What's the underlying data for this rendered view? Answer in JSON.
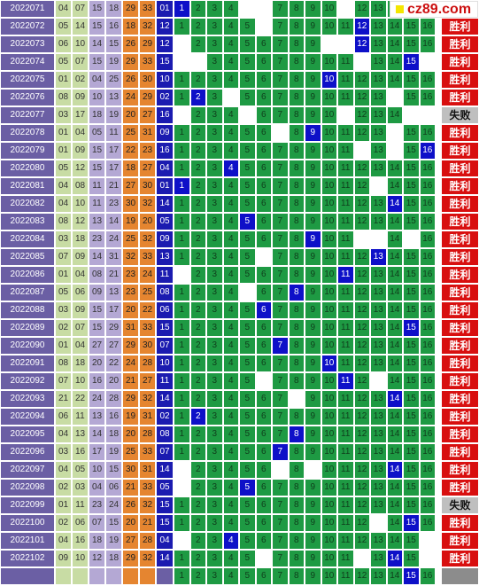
{
  "logo_text": "cz89.com",
  "win_label": "胜利",
  "lose_label": "失败",
  "rows": [
    {
      "period": "2022071",
      "nums": [
        "04",
        "07",
        "15",
        "18",
        "29",
        "33",
        "01"
      ],
      "hit": 1,
      "holes": [
        5,
        6,
        11
      ],
      "result": "胜利"
    },
    {
      "period": "2022072",
      "nums": [
        "05",
        "14",
        "15",
        "16",
        "18",
        "32",
        "12"
      ],
      "hit": 12,
      "holes": [
        6
      ],
      "result": "胜利"
    },
    {
      "period": "2022073",
      "nums": [
        "06",
        "10",
        "14",
        "15",
        "26",
        "29",
        "12"
      ],
      "hit": 12,
      "holes": [
        1,
        10,
        11
      ],
      "result": "胜利"
    },
    {
      "period": "2022074",
      "nums": [
        "05",
        "07",
        "15",
        "19",
        "29",
        "33",
        "15"
      ],
      "hit": 15,
      "holes": [
        1,
        2,
        12,
        16
      ],
      "result": "胜利"
    },
    {
      "period": "2022075",
      "nums": [
        "01",
        "02",
        "04",
        "25",
        "26",
        "30",
        "10"
      ],
      "hit": 10,
      "holes": [],
      "result": "胜利"
    },
    {
      "period": "2022076",
      "nums": [
        "08",
        "09",
        "10",
        "13",
        "24",
        "29",
        "02"
      ],
      "hit": 2,
      "holes": [
        4,
        14
      ],
      "result": "胜利"
    },
    {
      "period": "2022077",
      "nums": [
        "03",
        "17",
        "18",
        "19",
        "20",
        "27",
        "16"
      ],
      "hit": null,
      "holes": [
        1,
        5,
        11,
        15,
        16
      ],
      "result": "失败"
    },
    {
      "period": "2022078",
      "nums": [
        "01",
        "04",
        "05",
        "11",
        "25",
        "31",
        "09"
      ],
      "hit": 9,
      "holes": [
        7,
        14
      ],
      "result": "胜利"
    },
    {
      "period": "2022079",
      "nums": [
        "01",
        "09",
        "15",
        "17",
        "22",
        "23",
        "16"
      ],
      "hit": 16,
      "holes": [
        12,
        14
      ],
      "result": "胜利"
    },
    {
      "period": "2022080",
      "nums": [
        "05",
        "12",
        "15",
        "17",
        "18",
        "27",
        "04"
      ],
      "hit": 4,
      "holes": [],
      "result": "胜利"
    },
    {
      "period": "2022081",
      "nums": [
        "04",
        "08",
        "11",
        "21",
        "27",
        "30",
        "01"
      ],
      "hit": 1,
      "holes": [
        13
      ],
      "result": "胜利"
    },
    {
      "period": "2022082",
      "nums": [
        "04",
        "10",
        "11",
        "23",
        "30",
        "32",
        "14"
      ],
      "hit": 14,
      "holes": [],
      "result": "胜利"
    },
    {
      "period": "2022083",
      "nums": [
        "08",
        "12",
        "13",
        "14",
        "19",
        "20",
        "05"
      ],
      "hit": 5,
      "holes": [],
      "result": "胜利"
    },
    {
      "period": "2022084",
      "nums": [
        "03",
        "18",
        "23",
        "24",
        "25",
        "32",
        "09"
      ],
      "hit": 9,
      "holes": [
        12,
        13,
        15
      ],
      "result": "胜利"
    },
    {
      "period": "2022085",
      "nums": [
        "07",
        "09",
        "14",
        "31",
        "32",
        "33",
        "13"
      ],
      "hit": 13,
      "holes": [
        6
      ],
      "result": "胜利"
    },
    {
      "period": "2022086",
      "nums": [
        "01",
        "04",
        "08",
        "21",
        "23",
        "24",
        "11"
      ],
      "hit": 11,
      "holes": [
        1
      ],
      "result": "胜利"
    },
    {
      "period": "2022087",
      "nums": [
        "05",
        "06",
        "09",
        "13",
        "23",
        "25",
        "08"
      ],
      "hit": 8,
      "holes": [
        5
      ],
      "result": "胜利"
    },
    {
      "period": "2022088",
      "nums": [
        "03",
        "09",
        "15",
        "17",
        "20",
        "22",
        "06"
      ],
      "hit": 6,
      "holes": [],
      "result": "胜利"
    },
    {
      "period": "2022089",
      "nums": [
        "02",
        "07",
        "15",
        "29",
        "31",
        "33",
        "15"
      ],
      "hit": 15,
      "holes": [],
      "result": "胜利"
    },
    {
      "period": "2022090",
      "nums": [
        "01",
        "04",
        "27",
        "27",
        "29",
        "30",
        "07"
      ],
      "hit": 7,
      "holes": [],
      "result": "胜利"
    },
    {
      "period": "2022091",
      "nums": [
        "08",
        "18",
        "20",
        "22",
        "24",
        "28",
        "10"
      ],
      "hit": 10,
      "holes": [],
      "result": "胜利"
    },
    {
      "period": "2022092",
      "nums": [
        "07",
        "10",
        "16",
        "20",
        "21",
        "27",
        "11"
      ],
      "hit": 11,
      "holes": [
        6,
        13
      ],
      "result": "胜利"
    },
    {
      "period": "2022093",
      "nums": [
        "21",
        "22",
        "24",
        "28",
        "29",
        "32",
        "14"
      ],
      "hit": 14,
      "holes": [
        8
      ],
      "result": "胜利"
    },
    {
      "period": "2022094",
      "nums": [
        "06",
        "11",
        "13",
        "16",
        "19",
        "31",
        "02"
      ],
      "hit": 2,
      "holes": [],
      "result": "胜利"
    },
    {
      "period": "2022095",
      "nums": [
        "04",
        "13",
        "14",
        "18",
        "20",
        "28",
        "08"
      ],
      "hit": 8,
      "holes": [],
      "result": "胜利"
    },
    {
      "period": "2022096",
      "nums": [
        "03",
        "16",
        "17",
        "19",
        "25",
        "33",
        "07"
      ],
      "hit": 7,
      "holes": [],
      "result": "胜利"
    },
    {
      "period": "2022097",
      "nums": [
        "04",
        "05",
        "10",
        "15",
        "30",
        "31",
        "14"
      ],
      "hit": 14,
      "holes": [
        1,
        7,
        9
      ],
      "result": "胜利"
    },
    {
      "period": "2022098",
      "nums": [
        "02",
        "03",
        "04",
        "06",
        "21",
        "33",
        "05"
      ],
      "hit": 5,
      "holes": [
        1
      ],
      "result": "胜利"
    },
    {
      "period": "2022099",
      "nums": [
        "01",
        "11",
        "23",
        "24",
        "26",
        "32",
        "15"
      ],
      "hit": null,
      "holes": [],
      "result": "失败"
    },
    {
      "period": "2022100",
      "nums": [
        "02",
        "06",
        "07",
        "15",
        "20",
        "21",
        "15"
      ],
      "hit": 15,
      "holes": [
        13
      ],
      "result": "胜利"
    },
    {
      "period": "2022101",
      "nums": [
        "04",
        "16",
        "18",
        "19",
        "27",
        "28",
        "04"
      ],
      "hit": 4,
      "holes": [
        1,
        16
      ],
      "result": "胜利"
    },
    {
      "period": "2022102",
      "nums": [
        "09",
        "10",
        "12",
        "18",
        "29",
        "32",
        "14"
      ],
      "hit": 14,
      "holes": [
        6,
        12,
        16
      ],
      "result": "胜利"
    },
    {
      "period": "",
      "nums": [
        "",
        "",
        "",
        "",
        "",
        "",
        ""
      ],
      "hit": 15,
      "holes": [],
      "result": ""
    }
  ],
  "colors": {
    "period_bg": "#6b5fa4",
    "num_light": "#c8dca4",
    "num_lavender": "#b4a8d4",
    "num_orange": "#e58530",
    "num_blue": "#1b1bb0",
    "grid_green": "#1e9a43",
    "hit_blue": "#0e10c8",
    "win_red": "#d80f0f",
    "lose_gray": "#bfbfbf"
  }
}
